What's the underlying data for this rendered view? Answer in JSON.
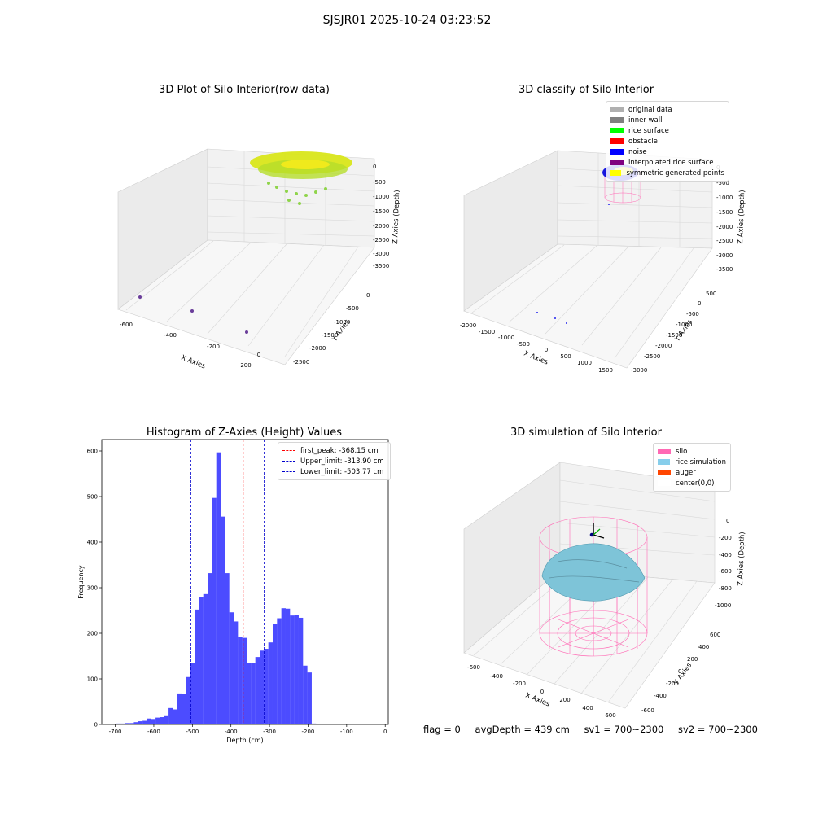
{
  "figure": {
    "title": "SJSJR01 2025-10-24 03:23:52"
  },
  "panels": {
    "raw": {
      "title": "3D Plot of Silo Interior(row data)",
      "xlabel": "X Axies",
      "ylabel": "Y Axies",
      "zlabel": "Z Axies (Depth)",
      "xticks": [
        "-600",
        "-400",
        "-200",
        "0",
        "200"
      ],
      "yticks": [
        "0",
        "-500",
        "-1000",
        "-1500",
        "-2000",
        "-2500"
      ],
      "zticks": [
        "0",
        "-500",
        "-1000",
        "-1500",
        "-2000",
        "-2500",
        "-3000",
        "-3500"
      ]
    },
    "classify": {
      "title": "3D classify of Silo Interior",
      "xlabel": "X Axies",
      "ylabel": "Y Axies",
      "zlabel": "Z Axies (Depth)",
      "xticks": [
        "-2000",
        "-1500",
        "-1000",
        "-500",
        "0",
        "500",
        "1000",
        "1500"
      ],
      "yticks": [
        "500",
        "0",
        "-500",
        "-1000",
        "-1500",
        "-2000",
        "-2500",
        "-3000"
      ],
      "zticks": [
        "0",
        "-500",
        "-1000",
        "-1500",
        "-2000",
        "-2500",
        "-3000",
        "-3500"
      ],
      "legend": [
        {
          "label": "original data",
          "color": "#b0b0b0"
        },
        {
          "label": "inner wall",
          "color": "#808080"
        },
        {
          "label": "rice surface",
          "color": "#00ff00"
        },
        {
          "label": "obstacle",
          "color": "#ff0000"
        },
        {
          "label": "noise",
          "color": "#0000ff"
        },
        {
          "label": "interpolated rice surface",
          "color": "#800080"
        },
        {
          "label": "symmetric generated points",
          "color": "#ffff00"
        }
      ]
    },
    "simulation": {
      "title": "3D simulation of Silo Interior",
      "xlabel": "X Axies",
      "ylabel": "Y Axies",
      "zlabel": "Z Axies (Depth)",
      "xticks": [
        "-600",
        "-400",
        "-200",
        "0",
        "200",
        "400",
        "600"
      ],
      "yticks": [
        "600",
        "400",
        "200",
        "0",
        "-200",
        "-400",
        "-600"
      ],
      "zticks": [
        "0",
        "-200",
        "-400",
        "-600",
        "-800",
        "-1000"
      ],
      "legend": [
        {
          "label": "silo",
          "color": "#ff69b4"
        },
        {
          "label": "rice simulation",
          "color": "#87ceeb"
        },
        {
          "label": "auger",
          "color": "#ff4500"
        },
        {
          "label": "center(0,0)",
          "color": "#ffffff"
        }
      ]
    }
  },
  "chart_data": {
    "type": "bar",
    "title": "Histogram of Z-Axies (Height) Values",
    "xlabel": "Depth (cm)",
    "ylabel": "Frequency",
    "xlim": [
      -735,
      8
    ],
    "ylim": [
      0,
      625
    ],
    "xticks": [
      -700,
      -600,
      -500,
      -400,
      -300,
      -200,
      -100,
      0
    ],
    "yticks": [
      0,
      100,
      200,
      300,
      400,
      500,
      600
    ],
    "bar_color": "#0000ff",
    "bin_width": 11.25,
    "bin_start": -708,
    "values": [
      1,
      2,
      2,
      3,
      3,
      5,
      7,
      8,
      13,
      12,
      15,
      16,
      20,
      36,
      33,
      68,
      67,
      104,
      134,
      252,
      280,
      286,
      332,
      497,
      597,
      456,
      332,
      246,
      226,
      192,
      190,
      134,
      134,
      148,
      162,
      166,
      180,
      221,
      233,
      255,
      254,
      239,
      240,
      234,
      129,
      114,
      2
    ],
    "lines": [
      {
        "label": "first_peak: -368.15 cm",
        "value": -368.15,
        "color": "#ff0000"
      },
      {
        "label": "Upper_limit: -313.90 cm",
        "value": -313.9,
        "color": "#0000cc"
      },
      {
        "label": "Lower_limit: -503.77 cm",
        "value": -503.77,
        "color": "#0000cc"
      }
    ]
  },
  "footer": {
    "flag": "flag = 0",
    "avg": "avgDepth = 439 cm",
    "sv1": "sv1 = 700~2300",
    "sv2": "sv2 = 700~2300"
  }
}
